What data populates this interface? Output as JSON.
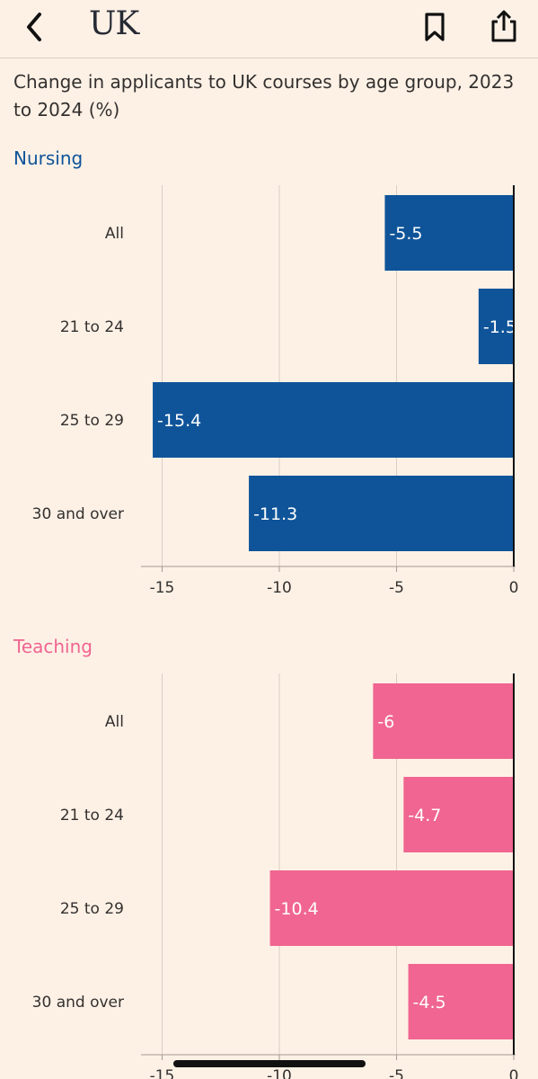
{
  "header": {
    "back_icon": "chevron-left-icon",
    "brand": "UK",
    "bookmark_icon": "bookmark-icon",
    "share_icon": "share-icon"
  },
  "chart_title": "Change in applicants to UK courses by age group, 2023 to 2024 (%)",
  "chart_data": [
    {
      "type": "bar",
      "orientation": "horizontal",
      "title": "Nursing",
      "color": "#0f5499",
      "categories": [
        "All",
        "21 to 24",
        "25 to 29",
        "30 and over"
      ],
      "values": [
        -5.5,
        -1.5,
        -15.4,
        -11.3
      ],
      "xlim": [
        -16,
        0
      ],
      "xticks": [
        -15,
        -10,
        -5,
        0
      ],
      "grid": true
    },
    {
      "type": "bar",
      "orientation": "horizontal",
      "title": "Teaching",
      "color": "#f06591",
      "categories": [
        "All",
        "21 to 24",
        "25 to 29",
        "30 and over"
      ],
      "values": [
        -6,
        -4.7,
        -10.4,
        -4.5
      ],
      "xlim": [
        -16,
        0
      ],
      "xticks": [
        -15,
        -10,
        -5,
        0
      ],
      "grid": true
    }
  ]
}
